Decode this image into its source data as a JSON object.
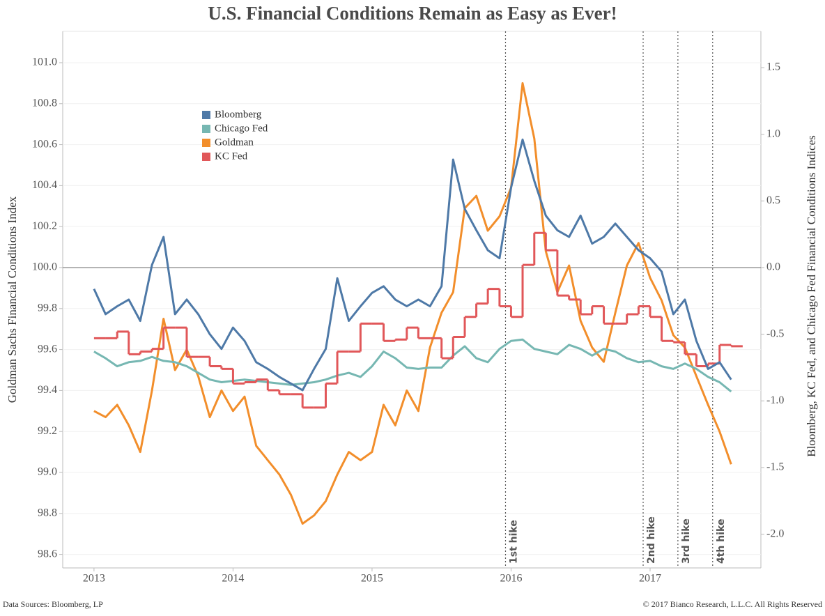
{
  "chart_data": {
    "type": "line",
    "title": "U.S. Financial Conditions Remain as Easy as Ever!",
    "y_label": "Goldman Sachs Financial Conditions Index",
    "y2_label": "Bloomberg, KC Fed, and Chicago Fed Financial Conditions Indices",
    "source": "Data Sources: Bloomberg, LP",
    "copyright": "© 2017 Bianco Research, L.L.C. All Rights Reserved",
    "x": [
      2013,
      2013.083,
      2013.167,
      2013.25,
      2013.333,
      2013.417,
      2013.5,
      2013.583,
      2013.667,
      2013.75,
      2013.833,
      2013.917,
      2014,
      2014.083,
      2014.167,
      2014.25,
      2014.333,
      2014.417,
      2014.5,
      2014.583,
      2014.667,
      2014.75,
      2014.833,
      2014.917,
      2015,
      2015.083,
      2015.167,
      2015.25,
      2015.333,
      2015.417,
      2015.5,
      2015.583,
      2015.667,
      2015.75,
      2015.833,
      2015.917,
      2016,
      2016.083,
      2016.167,
      2016.25,
      2016.333,
      2016.417,
      2016.5,
      2016.583,
      2016.667,
      2016.75,
      2016.833,
      2016.917,
      2017,
      2017.083,
      2017.167,
      2017.25,
      2017.333,
      2017.417,
      2017.5,
      2017.583
    ],
    "xlim": [
      2012.775,
      2017.797
    ],
    "xticks": [
      2013,
      2014,
      2015,
      2016,
      2017
    ],
    "ylim": [
      98.534,
      101.153
    ],
    "yticks": [
      98.6,
      98.8,
      {
        "value": 99.0,
        "label": "99.0"
      },
      99.2,
      99.4,
      99.6,
      99.8,
      {
        "value": 100.0,
        "label": "100.0"
      },
      100.2,
      100.4,
      100.6,
      100.8,
      {
        "value": 101.0,
        "label": "101.0"
      }
    ],
    "y2lim": [
      -2.253,
      1.772
    ],
    "y2ticks": [
      {
        "value": -2.0,
        "label": "-2.0"
      },
      -1.5,
      {
        "value": -1.0,
        "label": "-1.0"
      },
      -0.5,
      {
        "value": 0.0,
        "label": "0.0"
      },
      0.5,
      {
        "value": 1.0,
        "label": "1.0"
      },
      1.5
    ],
    "grid": true,
    "hline": {
      "value": 0,
      "axis": "y2"
    },
    "annotations": [
      {
        "x": 2015.96,
        "label": "1st hike"
      },
      {
        "x": 2016.95,
        "label": "2nd hike"
      },
      {
        "x": 2017.2,
        "label": "3rd hike"
      },
      {
        "x": 2017.45,
        "label": "4th hike"
      }
    ],
    "legend": "upper left",
    "series": [
      {
        "name": "Bloomberg",
        "color": "#4e79a7",
        "axis": "y2",
        "values": [
          -0.16,
          -0.35,
          -0.29,
          -0.24,
          -0.4,
          0.02,
          0.23,
          -0.35,
          -0.24,
          -0.35,
          -0.5,
          -0.61,
          -0.45,
          -0.55,
          -0.71,
          -0.76,
          -0.82,
          -0.87,
          -0.92,
          -0.76,
          -0.61,
          -0.08,
          -0.4,
          -0.29,
          -0.19,
          -0.14,
          -0.24,
          -0.29,
          -0.24,
          -0.29,
          -0.14,
          0.81,
          0.44,
          0.28,
          0.13,
          0.07,
          0.6,
          0.96,
          0.65,
          0.39,
          0.28,
          0.23,
          0.39,
          0.18,
          0.23,
          0.33,
          0.23,
          0.13,
          0.07,
          -0.03,
          -0.35,
          -0.24,
          -0.55,
          -0.76,
          -0.71,
          -0.84
        ]
      },
      {
        "name": "Chicago Fed",
        "color": "#76b7b2",
        "axis": "y2",
        "values": [
          -0.63,
          -0.68,
          -0.74,
          -0.71,
          -0.7,
          -0.67,
          -0.7,
          -0.71,
          -0.74,
          -0.79,
          -0.84,
          -0.86,
          -0.85,
          -0.84,
          -0.85,
          -0.86,
          -0.87,
          -0.88,
          -0.87,
          -0.86,
          -0.84,
          -0.81,
          -0.79,
          -0.82,
          -0.74,
          -0.63,
          -0.68,
          -0.75,
          -0.76,
          -0.75,
          -0.75,
          -0.66,
          -0.59,
          -0.68,
          -0.71,
          -0.61,
          -0.55,
          -0.54,
          -0.61,
          -0.63,
          -0.65,
          -0.58,
          -0.61,
          -0.66,
          -0.61,
          -0.63,
          -0.68,
          -0.71,
          -0.7,
          -0.74,
          -0.76,
          -0.72,
          -0.76,
          -0.82,
          -0.86,
          -0.93
        ]
      },
      {
        "name": "Goldman",
        "color": "#f28e2b",
        "axis": "y",
        "values": [
          99.3,
          99.27,
          99.33,
          99.23,
          99.1,
          99.4,
          99.75,
          99.5,
          99.6,
          99.47,
          99.27,
          99.4,
          99.3,
          99.37,
          99.13,
          99.06,
          98.99,
          98.89,
          98.75,
          98.79,
          98.86,
          98.99,
          99.1,
          99.06,
          99.1,
          99.33,
          99.23,
          99.4,
          99.3,
          99.61,
          99.78,
          99.88,
          100.29,
          100.35,
          100.18,
          100.25,
          100.39,
          100.9,
          100.63,
          100.08,
          99.88,
          100.01,
          99.74,
          99.61,
          99.54,
          99.78,
          100.01,
          100.12,
          99.95,
          99.84,
          99.67,
          99.61,
          99.47,
          99.33,
          99.2,
          99.04
        ]
      },
      {
        "name": "KC Fed",
        "color": "#e15759",
        "axis": "y2",
        "step": true,
        "values": [
          -0.53,
          -0.53,
          -0.48,
          -0.65,
          -0.63,
          -0.61,
          -0.45,
          -0.45,
          -0.67,
          -0.67,
          -0.74,
          -0.76,
          -0.87,
          -0.86,
          -0.84,
          -0.92,
          -0.95,
          -0.95,
          -1.05,
          -1.05,
          -0.87,
          -0.63,
          -0.63,
          -0.42,
          -0.42,
          -0.55,
          -0.54,
          -0.45,
          -0.53,
          -0.53,
          -0.68,
          -0.52,
          -0.37,
          -0.27,
          -0.16,
          -0.29,
          -0.37,
          0.02,
          0.26,
          0.13,
          -0.21,
          -0.24,
          -0.35,
          -0.29,
          -0.42,
          -0.42,
          -0.35,
          -0.29,
          -0.37,
          -0.55,
          -0.56,
          -0.65,
          -0.74,
          -0.72,
          -0.58,
          -0.59
        ]
      }
    ]
  }
}
